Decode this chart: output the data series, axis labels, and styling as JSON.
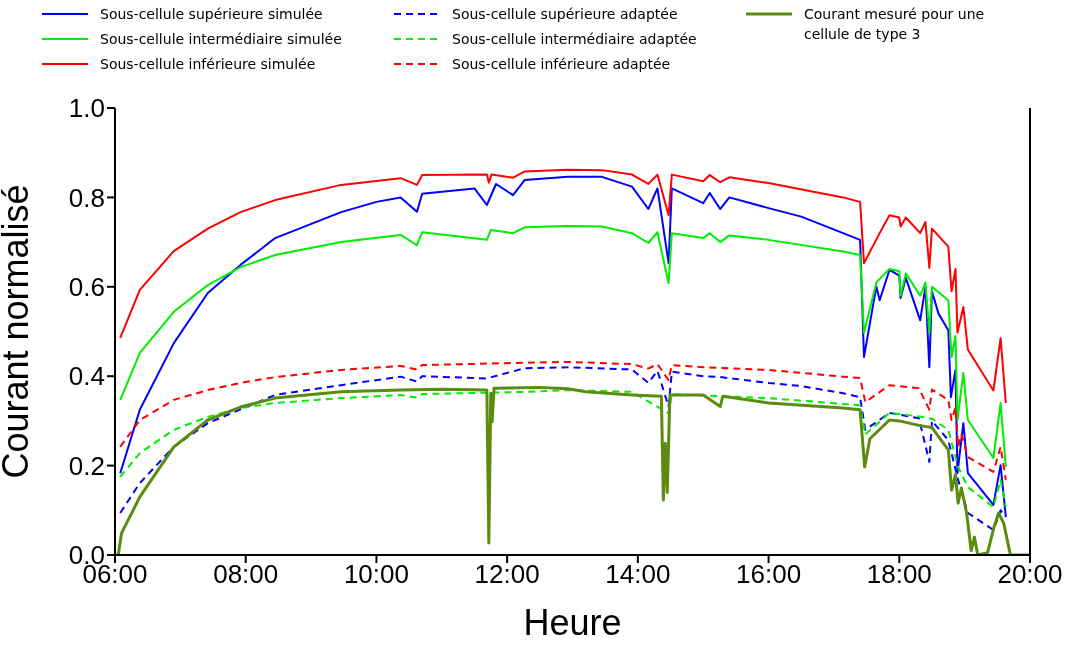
{
  "chart_data": {
    "type": "line",
    "xlabel": "Heure",
    "ylabel": "Courant normalisé",
    "xlim": [
      6,
      20
    ],
    "ylim": [
      0,
      1
    ],
    "xticks": [
      {
        "value": 6,
        "label": "06:00"
      },
      {
        "value": 8,
        "label": "08:00"
      },
      {
        "value": 10,
        "label": "10:00"
      },
      {
        "value": 12,
        "label": "12:00"
      },
      {
        "value": 14,
        "label": "14:00"
      },
      {
        "value": 16,
        "label": "16:00"
      },
      {
        "value": 18,
        "label": "18:00"
      },
      {
        "value": 20,
        "label": "20:00"
      }
    ],
    "yticks": [
      {
        "value": 0,
        "label": "0.0"
      },
      0.2,
      0.4,
      0.6,
      0.8,
      {
        "value": 1,
        "label": "1.0"
      }
    ],
    "legend": "top",
    "grid": false,
    "series": [
      {
        "name": "Sous-cellule supérieure simulée",
        "color": "#0000ff",
        "line_style": "solid",
        "x": [
          6.08,
          6.38,
          6.9,
          7.42,
          7.92,
          8.45,
          9.46,
          10.0,
          10.37,
          10.62,
          10.7,
          11.5,
          11.69,
          11.83,
          12.09,
          12.27,
          12.93,
          13.45,
          13.91,
          14.16,
          14.3,
          14.47,
          14.52,
          15.0,
          15.1,
          15.26,
          15.4,
          16.0,
          16.5,
          17.14,
          17.4,
          17.46,
          17.6,
          17.65,
          17.7,
          17.85,
          18.0,
          18.02,
          18.1,
          18.32,
          18.4,
          18.46,
          18.5,
          18.6,
          18.75,
          18.79,
          18.86,
          18.89,
          18.98,
          19.05,
          19.44,
          19.55,
          19.63
        ],
        "values": [
          0.183,
          0.325,
          0.474,
          0.586,
          0.649,
          0.709,
          0.767,
          0.79,
          0.8,
          0.768,
          0.808,
          0.82,
          0.783,
          0.83,
          0.805,
          0.839,
          0.846,
          0.846,
          0.824,
          0.774,
          0.82,
          0.653,
          0.82,
          0.787,
          0.81,
          0.774,
          0.8,
          0.776,
          0.757,
          0.72,
          0.705,
          0.443,
          0.56,
          0.6,
          0.57,
          0.638,
          0.625,
          0.575,
          0.62,
          0.525,
          0.6,
          0.42,
          0.59,
          0.54,
          0.503,
          0.353,
          0.414,
          0.183,
          0.295,
          0.183,
          0.112,
          0.201,
          0.085
        ]
      },
      {
        "name": "Sous-cellule intermédiaire simulée",
        "color": "#00ee00",
        "line_style": "solid",
        "x": [
          6.08,
          6.38,
          6.9,
          7.42,
          7.92,
          8.45,
          9.46,
          10.37,
          10.62,
          10.7,
          11.69,
          11.75,
          12.09,
          12.27,
          12.93,
          13.45,
          13.91,
          14.16,
          14.3,
          14.47,
          14.52,
          15.0,
          15.1,
          15.26,
          15.4,
          16.0,
          17.14,
          17.4,
          17.46,
          17.65,
          17.85,
          18.0,
          18.02,
          18.1,
          18.32,
          18.4,
          18.46,
          18.5,
          18.75,
          18.8,
          18.86,
          18.89,
          18.98,
          19.05,
          19.44,
          19.55,
          19.63
        ],
        "values": [
          0.347,
          0.452,
          0.544,
          0.604,
          0.644,
          0.671,
          0.7,
          0.716,
          0.693,
          0.722,
          0.705,
          0.727,
          0.72,
          0.733,
          0.736,
          0.735,
          0.72,
          0.698,
          0.722,
          0.608,
          0.72,
          0.709,
          0.72,
          0.7,
          0.715,
          0.705,
          0.679,
          0.671,
          0.497,
          0.61,
          0.64,
          0.635,
          0.58,
          0.63,
          0.58,
          0.61,
          0.497,
          0.6,
          0.57,
          0.443,
          0.49,
          0.302,
          0.407,
          0.302,
          0.217,
          0.34,
          0.197
        ]
      },
      {
        "name": "Sous-cellule inférieure simulée",
        "color": "#ff0000",
        "line_style": "solid",
        "x": [
          6.08,
          6.38,
          6.9,
          7.42,
          7.92,
          8.45,
          9.46,
          10.37,
          10.62,
          10.7,
          11.69,
          11.72,
          11.76,
          12.09,
          12.27,
          12.93,
          13.45,
          13.91,
          14.16,
          14.3,
          14.47,
          14.52,
          15.0,
          15.1,
          15.26,
          15.4,
          16.0,
          17.14,
          17.4,
          17.46,
          17.7,
          17.85,
          18.0,
          18.02,
          18.1,
          18.32,
          18.4,
          18.46,
          18.5,
          18.75,
          18.8,
          18.86,
          18.89,
          18.98,
          19.05,
          19.44,
          19.55,
          19.63
        ],
        "values": [
          0.486,
          0.593,
          0.68,
          0.73,
          0.767,
          0.794,
          0.828,
          0.843,
          0.828,
          0.85,
          0.851,
          0.833,
          0.851,
          0.844,
          0.858,
          0.862,
          0.861,
          0.851,
          0.83,
          0.851,
          0.76,
          0.851,
          0.836,
          0.85,
          0.834,
          0.845,
          0.832,
          0.8,
          0.79,
          0.653,
          0.72,
          0.76,
          0.755,
          0.735,
          0.755,
          0.72,
          0.745,
          0.642,
          0.73,
          0.69,
          0.59,
          0.64,
          0.497,
          0.555,
          0.459,
          0.368,
          0.485,
          0.34
        ]
      },
      {
        "name": "Sous-cellule supérieure adaptée",
        "color": "#0000ff",
        "line_style": "dashed",
        "x": [
          6.08,
          6.38,
          6.9,
          7.42,
          8.45,
          9.46,
          10.37,
          10.62,
          10.7,
          11.69,
          12.27,
          12.93,
          13.91,
          14.16,
          14.3,
          14.47,
          14.52,
          15.0,
          15.26,
          16.0,
          16.5,
          17.14,
          17.4,
          17.48,
          17.85,
          18.3,
          18.46,
          18.5,
          18.75,
          18.9,
          19.05,
          19.44,
          19.55,
          19.63
        ],
        "values": [
          0.094,
          0.161,
          0.242,
          0.295,
          0.358,
          0.38,
          0.399,
          0.388,
          0.4,
          0.395,
          0.418,
          0.42,
          0.415,
          0.385,
          0.412,
          0.332,
          0.41,
          0.4,
          0.398,
          0.385,
          0.378,
          0.362,
          0.353,
          0.28,
          0.318,
          0.306,
          0.208,
          0.3,
          0.257,
          0.168,
          0.094,
          0.056,
          0.1,
          0.085
        ]
      },
      {
        "name": "Sous-cellule intermédiaire adaptée",
        "color": "#00ee00",
        "line_style": "dashed",
        "x": [
          6.08,
          6.38,
          6.9,
          7.42,
          7.92,
          8.45,
          9.46,
          10.37,
          10.62,
          10.7,
          12.27,
          12.93,
          13.91,
          14.47,
          14.52,
          16.0,
          17.14,
          17.4,
          17.48,
          17.85,
          18.3,
          18.5,
          18.75,
          18.9,
          19.05,
          19.44,
          19.55,
          19.63
        ],
        "values": [
          0.175,
          0.228,
          0.28,
          0.309,
          0.329,
          0.34,
          0.351,
          0.358,
          0.352,
          0.36,
          0.365,
          0.369,
          0.365,
          0.317,
          0.36,
          0.351,
          0.338,
          0.335,
          0.27,
          0.318,
          0.31,
          0.305,
          0.28,
          0.197,
          0.152,
          0.107,
          0.168,
          0.107
        ]
      },
      {
        "name": "Sous-cellule inférieure adaptée",
        "color": "#ff0000",
        "line_style": "dashed",
        "x": [
          6.08,
          6.38,
          6.9,
          7.42,
          7.92,
          8.45,
          9.46,
          10.37,
          10.62,
          10.7,
          12.27,
          12.93,
          13.91,
          14.16,
          14.3,
          14.47,
          14.52,
          15.0,
          16.0,
          17.14,
          17.4,
          17.48,
          17.85,
          18.3,
          18.46,
          18.5,
          18.75,
          18.8,
          18.86,
          18.9,
          18.95,
          19.05,
          19.44,
          19.55,
          19.63
        ],
        "values": [
          0.242,
          0.302,
          0.347,
          0.369,
          0.385,
          0.398,
          0.414,
          0.423,
          0.415,
          0.425,
          0.43,
          0.432,
          0.427,
          0.417,
          0.427,
          0.391,
          0.425,
          0.42,
          0.414,
          0.399,
          0.396,
          0.342,
          0.38,
          0.373,
          0.325,
          0.37,
          0.347,
          0.302,
          0.33,
          0.242,
          0.27,
          0.219,
          0.186,
          0.242,
          0.168
        ]
      },
      {
        "name": "Courant mesuré pour une cellule de type 3",
        "color": "#5b8c0f",
        "line_style": "solid",
        "x": [
          6.0,
          6.05,
          6.1,
          6.38,
          6.9,
          7.42,
          7.92,
          8.45,
          9.46,
          10.37,
          11.0,
          11.69,
          11.72,
          11.75,
          11.77,
          11.8,
          12.5,
          12.93,
          13.2,
          13.91,
          14.36,
          14.39,
          14.42,
          14.45,
          14.49,
          15.0,
          15.26,
          15.3,
          16.0,
          17.14,
          17.4,
          17.47,
          17.55,
          17.85,
          18.0,
          18.3,
          18.5,
          18.75,
          18.8,
          18.86,
          18.9,
          18.95,
          19.03,
          19.1,
          19.15,
          19.2,
          19.35,
          19.45,
          19.52,
          19.6,
          19.7,
          20.0
        ],
        "values": [
          0,
          0,
          0.049,
          0.13,
          0.242,
          0.302,
          0.331,
          0.351,
          0.365,
          0.369,
          0.371,
          0.369,
          0.027,
          0.362,
          0.298,
          0.373,
          0.375,
          0.372,
          0.365,
          0.358,
          0.355,
          0.123,
          0.25,
          0.14,
          0.358,
          0.358,
          0.332,
          0.355,
          0.34,
          0.329,
          0.325,
          0.197,
          0.26,
          0.302,
          0.3,
          0.29,
          0.285,
          0.235,
          0.145,
          0.18,
          0.116,
          0.15,
          0.094,
          0.01,
          0.04,
          0,
          0.005,
          0.063,
          0.094,
          0.07,
          0,
          0
        ]
      }
    ]
  }
}
